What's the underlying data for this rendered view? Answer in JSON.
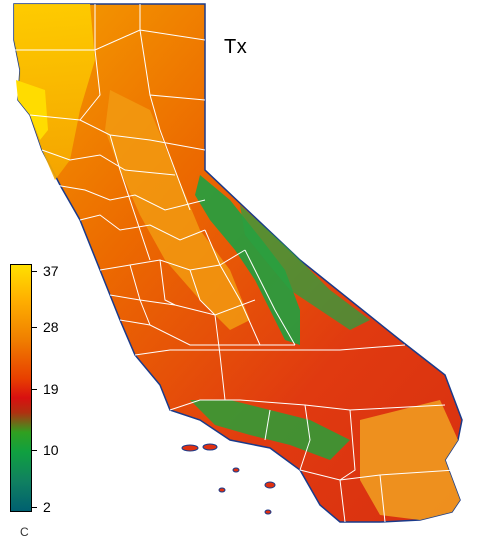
{
  "map": {
    "title": "Tx",
    "region": "California",
    "fill_colors": {
      "hot": "#ffb000",
      "warm": "#f08000",
      "mid": "#e03010",
      "cool": "#20a030",
      "cold": "#107060"
    },
    "county_line_color": "#ffffff"
  },
  "legend": {
    "unit": "C",
    "ticks": [
      "37",
      "28",
      "19",
      "10",
      "2"
    ],
    "colors": [
      "#ffe000",
      "#f08000",
      "#d81010",
      "#10a040",
      "#006070"
    ]
  }
}
